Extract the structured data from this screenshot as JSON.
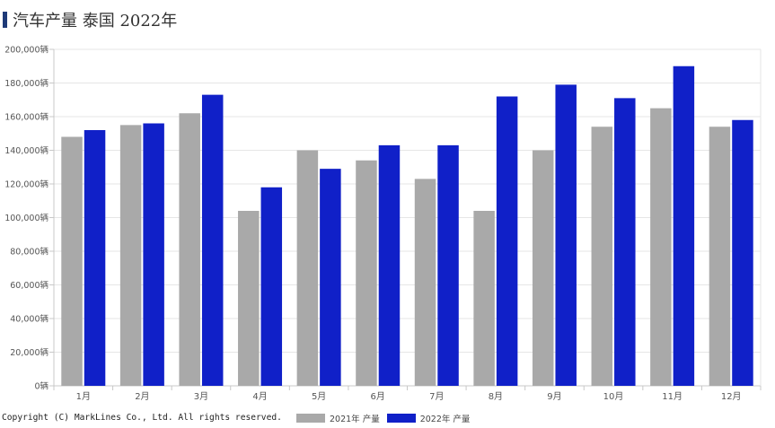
{
  "title": "汽车产量 泰国 2022年",
  "copyright": "Copyright (C) MarkLines Co., Ltd. All rights reserved.",
  "colors": {
    "series_2021": "#a9a9a9",
    "series_2022": "#1020c8",
    "title_marker": "#1e3a78"
  },
  "chart_data": {
    "type": "bar",
    "title": "汽车产量 泰国 2022年",
    "xlabel": "",
    "ylabel": "",
    "ylim": [
      0,
      200000
    ],
    "y_ticks": [
      "0辆",
      "20,000辆",
      "40,000辆",
      "60,000辆",
      "80,000辆",
      "100,000辆",
      "120,000辆",
      "140,000辆",
      "160,000辆",
      "180,000辆",
      "200,000辆"
    ],
    "grid": true,
    "legend": "bottom",
    "categories": [
      "1月",
      "2月",
      "3月",
      "4月",
      "5月",
      "6月",
      "7月",
      "8月",
      "9月",
      "10月",
      "11月",
      "12月"
    ],
    "series": [
      {
        "name": "2021年 产量",
        "values": [
          148000,
          155000,
          162000,
          104000,
          140000,
          134000,
          123000,
          104000,
          140000,
          154000,
          165000,
          154000
        ]
      },
      {
        "name": "2022年 产量",
        "values": [
          152000,
          156000,
          173000,
          118000,
          129000,
          143000,
          143000,
          172000,
          179000,
          171000,
          190000,
          158000
        ]
      }
    ]
  }
}
